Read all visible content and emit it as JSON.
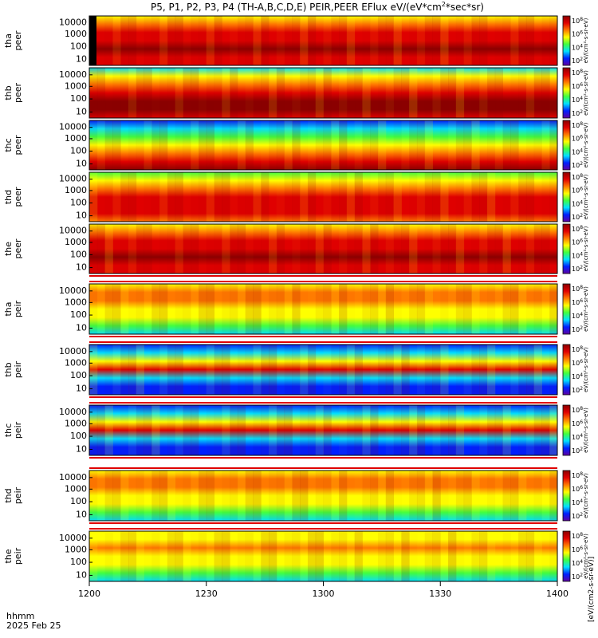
{
  "title": "P5, P1, P2, P3, P4 (TH-A,B,C,D,E) PEIR,PEER EFlux eV/(eV*cm",
  "title_sup": "2",
  "title_tail": "*sec*sr)",
  "time_label": "hhmm",
  "date_label": "2025 Feb 25",
  "x_ticks": [
    "1200",
    "1230",
    "1300",
    "1330",
    "1400"
  ],
  "y_ticks": [
    "10000",
    "1000",
    "100",
    "10"
  ],
  "cbar_ticks": [
    {
      "base": "10",
      "exp": "8"
    },
    {
      "base": "10",
      "exp": "6"
    },
    {
      "base": "10",
      "exp": "4"
    },
    {
      "base": "10",
      "exp": "2"
    }
  ],
  "cbar_units_short": "eV/(cm²-s-sr-eV)",
  "cbar_units_bottom": "[eV/(cm2-s-sr-eV)]",
  "colors": {
    "black": "#000000",
    "darkred": "#8b0000",
    "red": "#e00000",
    "orange": "#ff7800",
    "yellow": "#ffff00",
    "green": "#40ff40",
    "cyan": "#00e0ff",
    "blue": "#0020ff",
    "purple": "#6000a0"
  },
  "chart_data": {
    "type": "heatmap",
    "x": [
      "1200",
      "1230",
      "1300",
      "1330",
      "1400"
    ],
    "xrange": [
      "12:00",
      "14:00"
    ],
    "y_scale": "log",
    "ylim": [
      5,
      25000
    ],
    "zscale": "log",
    "zlim": [
      1,
      100000000
    ],
    "panels": [
      {
        "probe": "tha",
        "species": "peer",
        "ylabel": "tha\npeer",
        "bands": [
          [
            "yellow",
            "orange",
            "red",
            "red",
            "darkred",
            "red",
            "red"
          ]
        ]
      },
      {
        "probe": "thb",
        "species": "peer",
        "ylabel": "thb\npeer",
        "bands": [
          [
            "cyan",
            "yellow",
            "orange",
            "red",
            "darkred",
            "darkred",
            "red"
          ]
        ]
      },
      {
        "probe": "thc",
        "species": "peer",
        "ylabel": "thc\npeer",
        "bands": [
          [
            "blue",
            "cyan",
            "green",
            "yellow",
            "orange",
            "red",
            "darkred"
          ]
        ]
      },
      {
        "probe": "thd",
        "species": "peer",
        "ylabel": "thd\npeer",
        "bands": [
          [
            "green",
            "yellow",
            "orange",
            "red",
            "red",
            "red",
            "orange"
          ]
        ]
      },
      {
        "probe": "the",
        "species": "peer",
        "ylabel": "the\npeer",
        "bands": [
          [
            "yellow",
            "orange",
            "red",
            "red",
            "darkred",
            "red",
            "red"
          ]
        ]
      },
      {
        "probe": "tha",
        "species": "peir",
        "ylabel": "tha\npeir",
        "bands": [
          [
            "yellow",
            "orange",
            "orange",
            "yellow",
            "yellow",
            "green",
            "cyan"
          ]
        ]
      },
      {
        "probe": "thb",
        "species": "peir",
        "ylabel": "thb\npeir",
        "bands": [
          [
            "blue",
            "cyan",
            "yellow",
            "red",
            "cyan",
            "blue",
            "blue"
          ]
        ]
      },
      {
        "probe": "thc",
        "species": "peir",
        "ylabel": "thc\npeir",
        "bands": [
          [
            "blue",
            "cyan",
            "yellow",
            "red",
            "cyan",
            "blue",
            "blue"
          ]
        ]
      },
      {
        "probe": "thd",
        "species": "peir",
        "ylabel": "thd\npeir",
        "bands": [
          [
            "yellow",
            "orange",
            "orange",
            "yellow",
            "yellow",
            "green",
            "cyan"
          ]
        ]
      },
      {
        "probe": "the",
        "species": "peir",
        "ylabel": "the\npeir",
        "bands": [
          [
            "yellow",
            "yellow",
            "orange",
            "yellow",
            "yellow",
            "green",
            "cyan"
          ]
        ]
      }
    ]
  }
}
